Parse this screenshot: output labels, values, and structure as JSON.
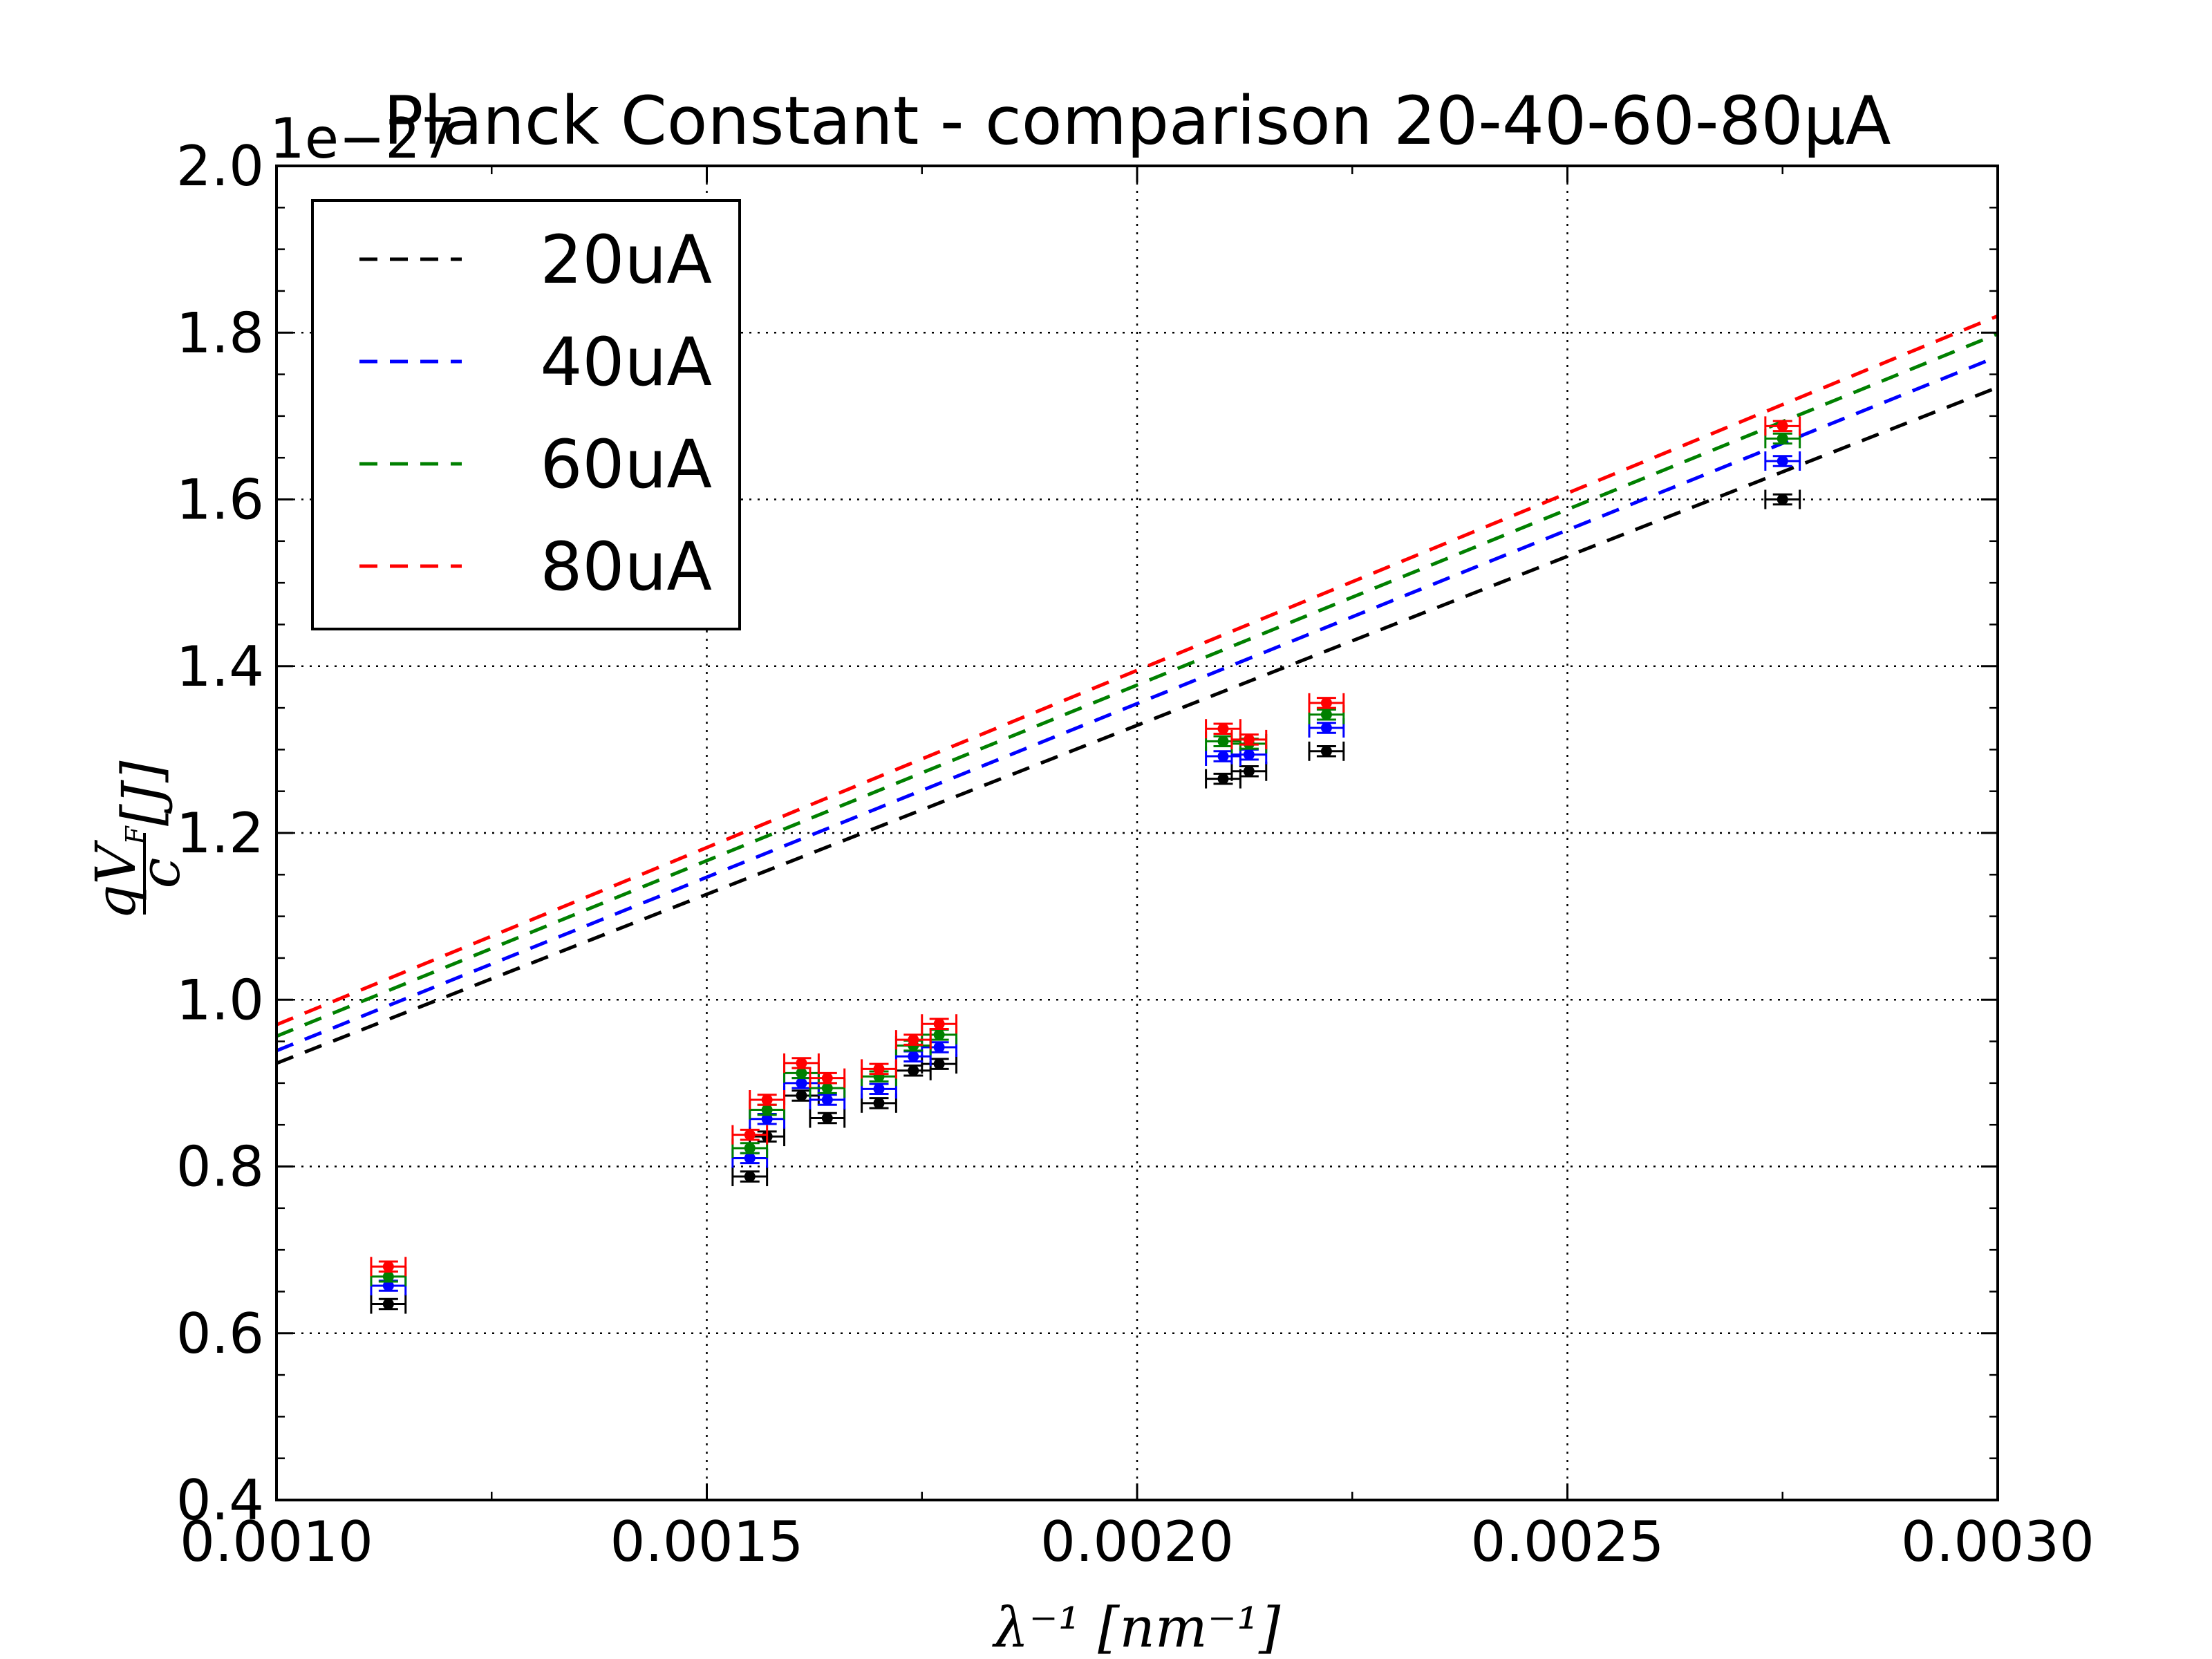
{
  "chart_data": {
    "type": "scatter",
    "title": "Planck Constant - comparison 20-40-60-80μA",
    "xlabel": "λ⁻¹ [nm⁻¹]",
    "ylabel": "qV_F / c [J]",
    "ylabel_main": "qV",
    "ylabel_sub": "F",
    "ylabel_den": "c",
    "ylabel_unit": "[J]",
    "y_offset_label": "1e−27",
    "xlim": [
      0.001,
      0.003
    ],
    "ylim": [
      0.4,
      2.0
    ],
    "x_ticks": [
      "0.0010",
      "0.0015",
      "0.0020",
      "0.0025",
      "0.0030"
    ],
    "y_ticks": [
      "0.4",
      "0.6",
      "0.8",
      "1.0",
      "1.2",
      "1.4",
      "1.6",
      "1.8",
      "2.0"
    ],
    "grid": true,
    "legend_position": "top-left",
    "x": [
      0.00113,
      0.00155,
      0.00157,
      0.00161,
      0.00164,
      0.0017,
      0.00174,
      0.00177,
      0.0021,
      0.00213,
      0.00222,
      0.00275
    ],
    "x_error": 2e-05,
    "y_error": 0.006,
    "series": [
      {
        "name": "20uA",
        "color": "#000000",
        "values": [
          0.635,
          0.788,
          0.836,
          0.885,
          0.858,
          0.876,
          0.915,
          0.923,
          1.265,
          1.274,
          1.298,
          1.6
        ],
        "fit": {
          "intercept": 0.5185,
          "slope": 405.3
        }
      },
      {
        "name": "40uA",
        "color": "#0000ff",
        "values": [
          0.657,
          0.81,
          0.857,
          0.9,
          0.88,
          0.893,
          0.932,
          0.943,
          1.292,
          1.294,
          1.326,
          1.646
        ],
        "fit": {
          "intercept": 0.5225,
          "slope": 416.3
        }
      },
      {
        "name": "60uA",
        "color": "#008000",
        "values": [
          0.668,
          0.822,
          0.868,
          0.912,
          0.894,
          0.908,
          0.945,
          0.958,
          1.31,
          1.307,
          1.342,
          1.673
        ],
        "fit": {
          "intercept": 0.535,
          "slope": 421.2
        }
      },
      {
        "name": "80uA",
        "color": "#ff0000",
        "values": [
          0.68,
          0.838,
          0.88,
          0.924,
          0.906,
          0.917,
          0.952,
          0.971,
          1.325,
          1.312,
          1.356,
          1.688
        ],
        "fit": {
          "intercept": 0.545,
          "slope": 425.0
        }
      }
    ]
  }
}
